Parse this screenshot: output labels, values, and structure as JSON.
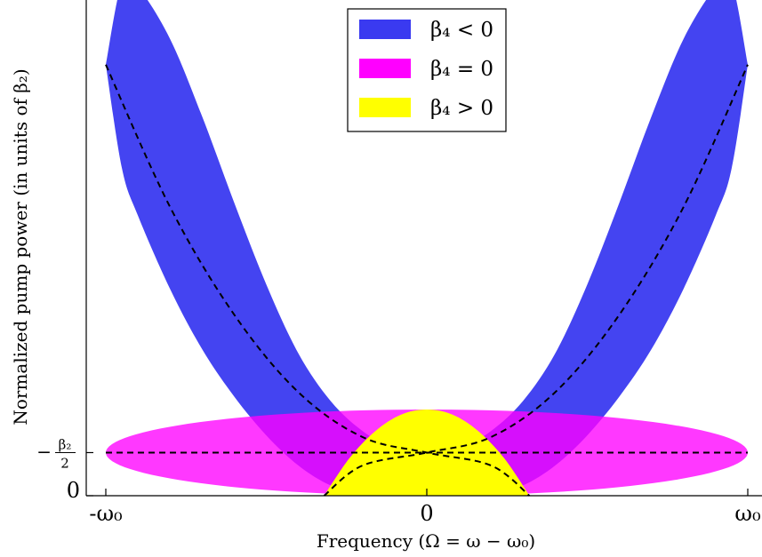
{
  "chart_data": {
    "type": "area",
    "xlabel": "Frequency (Ω = ω − ω₀)",
    "ylabel": "Normalized pump power (in units of β₂)",
    "xlim": [
      -1,
      1
    ],
    "ylim": [
      0,
      5.75
    ],
    "x_ticks": [
      {
        "value": -1,
        "label": "-ω₀"
      },
      {
        "value": 0,
        "label": "0"
      },
      {
        "value": 1,
        "label": "ω₀"
      }
    ],
    "y_ticks": [
      {
        "value": 0,
        "label": "0"
      },
      {
        "value": 0.5,
        "label": "−β₂/2",
        "label_numerator": "β₂",
        "label_prefix": "−",
        "label_denominator": "2"
      }
    ],
    "grid": false,
    "legend": {
      "placement": "top-center",
      "entries": [
        "β₄ < 0",
        "β₄ = 0",
        "β₄ > 0"
      ]
    },
    "series": [
      {
        "name": "β₄ < 0",
        "kind": "band",
        "color": "#3a3af0",
        "x": [
          -1,
          -0.95,
          -0.9,
          -0.8,
          -0.7,
          -0.6,
          -0.5,
          -0.4,
          -0.3,
          -0.2,
          -0.1,
          0,
          0.1,
          0.2,
          0.3,
          0.4,
          0.5,
          0.6,
          0.7,
          0.8,
          0.9,
          0.95,
          1
        ],
        "upper": [
          5.0,
          5.95,
          5.9,
          5.3,
          4.4,
          3.4,
          2.45,
          1.65,
          1.1,
          0.75,
          0.55,
          0.5,
          0.55,
          0.75,
          1.1,
          1.65,
          2.45,
          3.4,
          4.4,
          5.3,
          5.9,
          5.95,
          5.0
        ],
        "lower": [
          5.0,
          3.8,
          3.25,
          2.4,
          1.7,
          1.15,
          0.7,
          0.35,
          0.12,
          0.02,
          0.0,
          0.0,
          0.0,
          0.02,
          0.12,
          0.35,
          0.7,
          1.15,
          1.7,
          2.4,
          3.25,
          3.8,
          5.0
        ]
      },
      {
        "name": "β₄ = 0",
        "kind": "ellipse",
        "color": "#ff00ff",
        "center": [
          0,
          0.5
        ],
        "radius_x": 1,
        "radius_y": 0.5
      },
      {
        "name": "β₄ > 0",
        "kind": "cap",
        "color": "#ffff00",
        "x": [
          -0.32,
          -0.24,
          -0.16,
          -0.08,
          0,
          0.08,
          0.16,
          0.24,
          0.32
        ],
        "y": [
          0,
          0.44,
          0.75,
          0.94,
          1.0,
          0.94,
          0.75,
          0.44,
          0
        ]
      }
    ],
    "guides": [
      {
        "name": "horizontal-reference",
        "style": "dashed",
        "x": [
          -1,
          1
        ],
        "y": [
          0.5,
          0.5
        ]
      },
      {
        "name": "rising-parabola",
        "style": "dashed",
        "x": [
          -0.32,
          -0.2,
          0,
          0.2,
          0.4,
          0.6,
          0.8,
          1
        ],
        "y": [
          0,
          0.35,
          0.5,
          0.68,
          1.2,
          2.1,
          3.35,
          5.0
        ]
      },
      {
        "name": "falling-parabola",
        "style": "dashed",
        "x": [
          -1,
          -0.8,
          -0.6,
          -0.4,
          -0.2,
          0,
          0.2,
          0.32
        ],
        "y": [
          5.0,
          3.35,
          2.1,
          1.2,
          0.68,
          0.5,
          0.35,
          0
        ]
      }
    ]
  }
}
